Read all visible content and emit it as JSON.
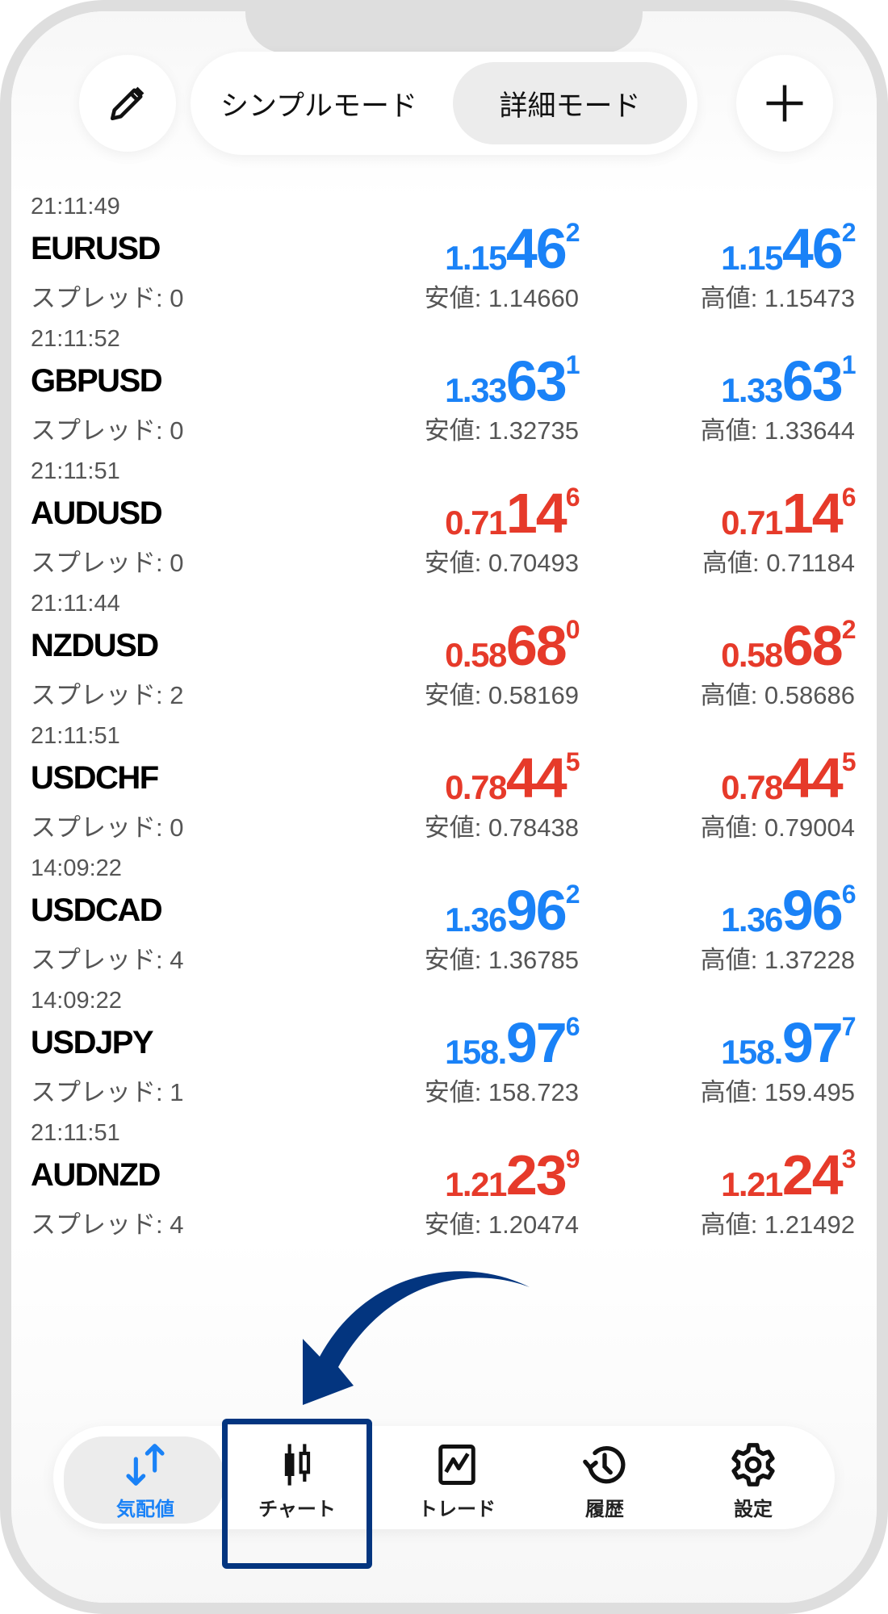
{
  "header": {
    "edit_icon": "pencil-icon",
    "modes": [
      {
        "label": "シンプルモード",
        "active": false
      },
      {
        "label": "詳細モード",
        "active": true
      }
    ],
    "add_icon": "plus-icon"
  },
  "quotes": [
    {
      "time": "21:11:49",
      "symbol": "EURUSD",
      "spread": "スプレッド: 0",
      "dir": "up",
      "bid": {
        "small": "1.15",
        "big": "46",
        "sup": "2"
      },
      "ask": {
        "small": "1.15",
        "big": "46",
        "sup": "2"
      },
      "low": "安値: 1.14660",
      "high": "高値: 1.15473"
    },
    {
      "time": "21:11:52",
      "symbol": "GBPUSD",
      "spread": "スプレッド: 0",
      "dir": "up",
      "bid": {
        "small": "1.33",
        "big": "63",
        "sup": "1"
      },
      "ask": {
        "small": "1.33",
        "big": "63",
        "sup": "1"
      },
      "low": "安値: 1.32735",
      "high": "高値: 1.33644"
    },
    {
      "time": "21:11:51",
      "symbol": "AUDUSD",
      "spread": "スプレッド: 0",
      "dir": "down",
      "bid": {
        "small": "0.71",
        "big": "14",
        "sup": "6"
      },
      "ask": {
        "small": "0.71",
        "big": "14",
        "sup": "6"
      },
      "low": "安値: 0.70493",
      "high": "高値: 0.71184"
    },
    {
      "time": "21:11:44",
      "symbol": "NZDUSD",
      "spread": "スプレッド: 2",
      "dir": "down",
      "bid": {
        "small": "0.58",
        "big": "68",
        "sup": "0"
      },
      "ask": {
        "small": "0.58",
        "big": "68",
        "sup": "2"
      },
      "low": "安値: 0.58169",
      "high": "高値: 0.58686"
    },
    {
      "time": "21:11:51",
      "symbol": "USDCHF",
      "spread": "スプレッド: 0",
      "dir": "down",
      "bid": {
        "small": "0.78",
        "big": "44",
        "sup": "5"
      },
      "ask": {
        "small": "0.78",
        "big": "44",
        "sup": "5"
      },
      "low": "安値: 0.78438",
      "high": "高値: 0.79004"
    },
    {
      "time": "14:09:22",
      "symbol": "USDCAD",
      "spread": "スプレッド: 4",
      "dir": "up",
      "bid": {
        "small": "1.36",
        "big": "96",
        "sup": "2"
      },
      "ask": {
        "small": "1.36",
        "big": "96",
        "sup": "6"
      },
      "low": "安値: 1.36785",
      "high": "高値: 1.37228"
    },
    {
      "time": "14:09:22",
      "symbol": "USDJPY",
      "spread": "スプレッド: 1",
      "dir": "up",
      "bid": {
        "small": "158.",
        "big": "97",
        "sup": "6"
      },
      "ask": {
        "small": "158.",
        "big": "97",
        "sup": "7"
      },
      "low": "安値: 158.723",
      "high": "高値: 159.495"
    },
    {
      "time": "21:11:51",
      "symbol": "AUDNZD",
      "spread": "スプレッド: 4",
      "dir": "down",
      "bid": {
        "small": "1.21",
        "big": "23",
        "sup": "9"
      },
      "ask": {
        "small": "1.21",
        "big": "24",
        "sup": "3"
      },
      "low": "安値: 1.20474",
      "high": "高値: 1.21492"
    }
  ],
  "nav": {
    "tabs": [
      {
        "label": "気配値",
        "icon": "quotes-arrows-icon",
        "active": true
      },
      {
        "label": "チャート",
        "icon": "candlestick-chart-icon",
        "active": false,
        "highlighted": true
      },
      {
        "label": "トレード",
        "icon": "trade-chart-icon",
        "active": false
      },
      {
        "label": "履歴",
        "icon": "history-icon",
        "active": false
      },
      {
        "label": "設定",
        "icon": "gear-icon",
        "active": false
      }
    ]
  },
  "colors": {
    "up": "#1a82f7",
    "down": "#e63a2a",
    "highlight": "#03357f",
    "annotation_arrow": "#03357f"
  }
}
